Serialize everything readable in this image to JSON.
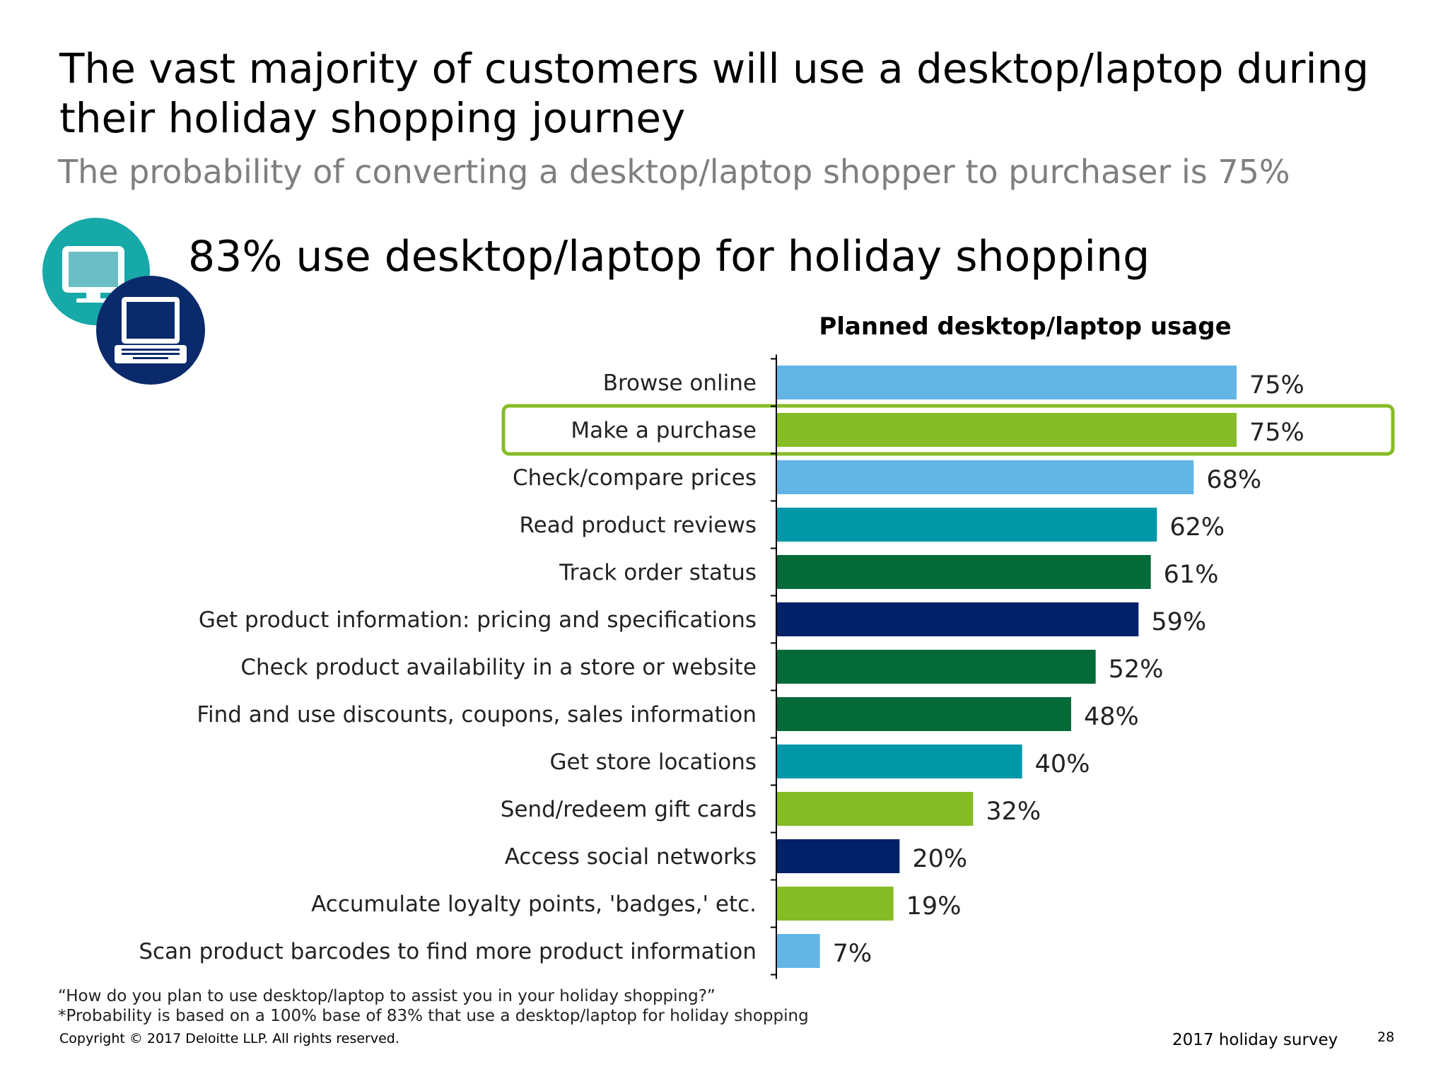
{
  "slide": {
    "title": "The vast majority of customers will use a desktop/laptop during their holiday shopping journey",
    "subtitle": "The probability of converting a desktop/laptop shopper to purchaser is 75%",
    "headline": "83% use desktop/laptop for holiday shopping",
    "footnote_question": "“How do you plan to use desktop/laptop to assist you in your holiday shopping?”",
    "footnote_probability": "*Probability is based on a 100% base of 83% that use a desktop/laptop for holiday shopping",
    "copyright": "Copyright © 2017 Deloitte LLP. All rights reserved.",
    "survey_label": "2017 holiday survey",
    "page_number": "28"
  },
  "icons": {
    "monitor": "desktop-monitor-icon",
    "laptop": "laptop-icon",
    "monitor_bg": "#17a8a8",
    "laptop_bg": "#0a2a6b"
  },
  "highlight": {
    "category": "Make a purchase",
    "color": "#86bc25"
  },
  "chart_data": {
    "type": "bar",
    "orientation": "horizontal",
    "title": "Planned desktop/laptop usage",
    "categories": [
      "Browse online",
      "Make a purchase",
      "Check/compare prices",
      "Read product reviews",
      "Track order status",
      "Get product information: pricing and specifications",
      "Check product availability in a store or website",
      "Find and use discounts, coupons, sales information",
      "Get store locations",
      "Send/redeem gift cards",
      "Access social networks",
      "Accumulate loyalty points, 'badges,' etc.",
      "Scan product barcodes to find more product information"
    ],
    "values": [
      75,
      75,
      68,
      62,
      61,
      59,
      52,
      48,
      40,
      32,
      20,
      19,
      7
    ],
    "value_labels": [
      "75%",
      "75%",
      "68%",
      "62%",
      "61%",
      "59%",
      "52%",
      "48%",
      "40%",
      "32%",
      "20%",
      "19%",
      "7%"
    ],
    "colors": [
      "#62b5e5",
      "#86bc25",
      "#62b5e5",
      "#0097a9",
      "#046a38",
      "#012169",
      "#046a38",
      "#046a38",
      "#0097a9",
      "#86bc25",
      "#012169",
      "#86bc25",
      "#62b5e5"
    ],
    "xlim": [
      0,
      100
    ],
    "grid": false,
    "legend": false
  }
}
